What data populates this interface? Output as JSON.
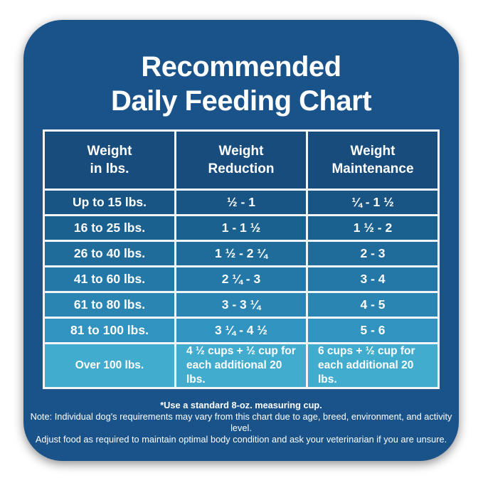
{
  "colors": {
    "card_background": "#1A5389",
    "header_cell_background": "#174C7D",
    "table_border": "#F2F5F7",
    "title_text": "#FFFFFF",
    "row_backgrounds": [
      "#185584",
      "#1B6190",
      "#1F6C9B",
      "#2478A7",
      "#2A85B2",
      "#3193BF",
      "#42ACCF"
    ]
  },
  "card": {
    "title_line1": "Recommended",
    "title_line2": "Daily Feeding Chart"
  },
  "table": {
    "columns": [
      {
        "name": "weight",
        "lines": [
          "Weight",
          "in lbs."
        ]
      },
      {
        "name": "reduction",
        "lines": [
          "Weight",
          "Reduction"
        ]
      },
      {
        "name": "maintenance",
        "lines": [
          "Weight",
          "Maintenance"
        ]
      }
    ],
    "rows": [
      {
        "weight": "Up to 15 lbs.",
        "reduction": "½ - 1",
        "maintenance": "¼ - 1 ½"
      },
      {
        "weight": "16 to 25 lbs.",
        "reduction": "1 - 1 ½",
        "maintenance": "1 ½ - 2"
      },
      {
        "weight": "26 to 40 lbs.",
        "reduction": "1 ½ - 2 ¼",
        "maintenance": "2 - 3"
      },
      {
        "weight": "41 to 60 lbs.",
        "reduction": "2 ¼ - 3",
        "maintenance": "3 - 4"
      },
      {
        "weight": "61 to 80 lbs.",
        "reduction": "3 - 3 ¼",
        "maintenance": "4 - 5"
      },
      {
        "weight": "81 to 100 lbs.",
        "reduction": "3 ¼ - 4 ½",
        "maintenance": "5 - 6"
      },
      {
        "weight": "Over 100 lbs.",
        "reduction": "4 ½ cups + ½ cup for each additional 20 lbs.",
        "maintenance": "6 cups + ½ cup for each additional 20 lbs."
      }
    ]
  },
  "footnotes": {
    "line1": "*Use a standard 8-oz. measuring cup.",
    "line2": "Note: Individual dog's requirements may vary from this chart due to age, breed, environment, and activity level.",
    "line3": "Adjust food as required to maintain optimal body condition and ask your veterinarian if you are unsure."
  },
  "chart_data": {
    "type": "table",
    "title": "Recommended Daily Feeding Chart",
    "columns": [
      "Weight in lbs.",
      "Weight Reduction",
      "Weight Maintenance"
    ],
    "rows": [
      [
        "Up to 15 lbs.",
        "½ - 1",
        "¼ - 1 ½"
      ],
      [
        "16 to 25 lbs.",
        "1 - 1 ½",
        "1 ½ - 2"
      ],
      [
        "26 to 40 lbs.",
        "1 ½ - 2 ¼",
        "2 - 3"
      ],
      [
        "41 to 60 lbs.",
        "2 ¼ - 3",
        "3 - 4"
      ],
      [
        "61 to 80 lbs.",
        "3 - 3 ¼",
        "4 - 5"
      ],
      [
        "81 to 100 lbs.",
        "3 ¼ - 4 ½",
        "5 - 6"
      ],
      [
        "Over 100 lbs.",
        "4 ½ cups + ½ cup for each additional 20 lbs.",
        "6 cups + ½ cup for each additional 20 lbs."
      ]
    ],
    "notes": [
      "*Use a standard 8-oz. measuring cup.",
      "Note: Individual dog's requirements may vary from this chart due to age, breed, environment, and activity level.",
      "Adjust food as required to maintain optimal body condition and ask your veterinarian if you are unsure."
    ]
  }
}
